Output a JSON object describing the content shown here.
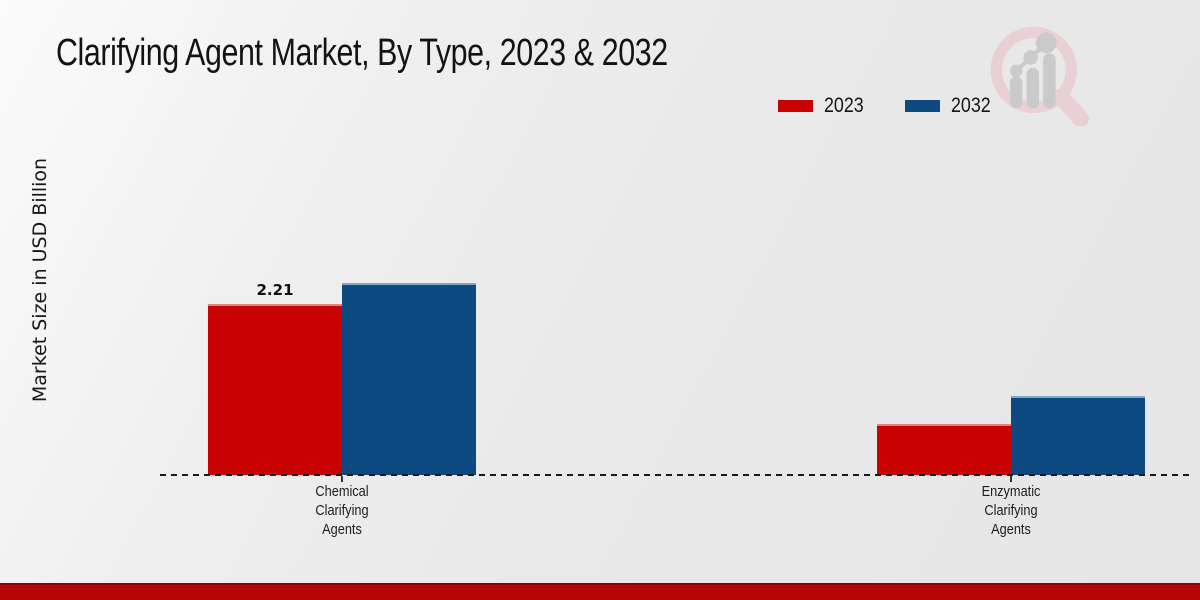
{
  "branding": {
    "logo_icon": "magnifier-bar-chart-logo",
    "logo_ring_color": "#e9ced3",
    "logo_bar_color": "#c7c7c9",
    "footer_bar_color": "#b70404"
  },
  "chart_data": {
    "type": "bar",
    "title": "Clarifying Agent Market, By Type, 2023 & 2032",
    "xlabel": "",
    "ylabel": "Market Size in USD Billion",
    "categories": [
      "Chemical\nClarifying\nAgents",
      "Enzymatic\nClarifying\nAgents"
    ],
    "series": [
      {
        "name": "2023",
        "color": "#c90303",
        "values": [
          2.21,
          0.66
        ]
      },
      {
        "name": "2032",
        "color": "#0d4a82",
        "values": [
          2.48,
          1.02
        ]
      }
    ],
    "data_labels": [
      {
        "series_index": 0,
        "category_index": 0,
        "text": "2.21"
      }
    ],
    "ylim": [
      0,
      2.6
    ],
    "grid": false,
    "legend_position": "top-right",
    "baseline_style": "dashed",
    "axis_ticks_visible": true,
    "y_tick_labels_visible": false
  }
}
